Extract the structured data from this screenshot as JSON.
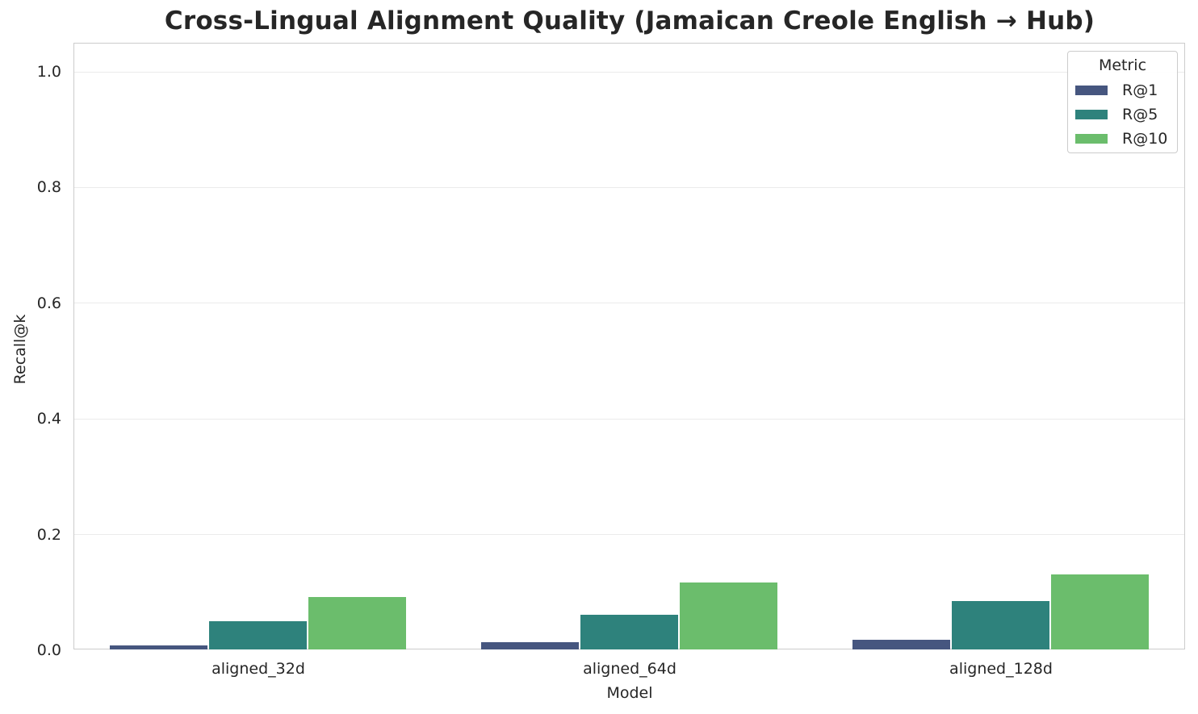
{
  "chart_data": {
    "type": "bar",
    "title": "Cross-Lingual Alignment Quality (Jamaican Creole English → Hub)",
    "xlabel": "Model",
    "ylabel": "Recall@k",
    "ylim": [
      0,
      1.05
    ],
    "yticks": [
      "0.0",
      "0.2",
      "0.4",
      "0.6",
      "0.8",
      "1.0"
    ],
    "grid": true,
    "legend_position": "upper right",
    "legend_title": "Metric",
    "categories": [
      "aligned_32d",
      "aligned_64d",
      "aligned_128d"
    ],
    "series": [
      {
        "name": "R@1",
        "color": "#46567f",
        "values": [
          0.008,
          0.013,
          0.018
        ]
      },
      {
        "name": "R@5",
        "color": "#2e827c",
        "values": [
          0.049,
          0.06,
          0.085
        ]
      },
      {
        "name": "R@10",
        "color": "#6bbd6c",
        "values": [
          0.091,
          0.117,
          0.131
        ]
      }
    ]
  }
}
